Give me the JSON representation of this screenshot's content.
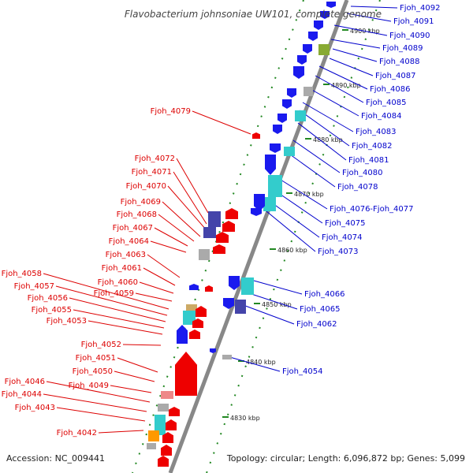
{
  "title": "Flavobacterium johnsoniae UW101, complete genome",
  "footer": {
    "accession": "Accession: NC_009441",
    "topology": "Topology: circular; Length: 6,096,872 bp; Genes: 5,099"
  },
  "colors": {
    "backbone": "#888888",
    "tick": "#228822",
    "forward_label": "#0000cc",
    "reverse_label": "#dd0000",
    "forward_gene": "#1a1aee",
    "reverse_gene": "#ee0000",
    "cyan": "#33cccc",
    "navy": "#4444aa",
    "olive": "#88aa33",
    "gray": "#aaaaaa",
    "orange": "#ff9900",
    "tan": "#ccaa66",
    "pink": "#ee8888"
  },
  "scale_labels": [
    "4900 kbp",
    "4890 kbp",
    "4880 kbp",
    "4870 kbp",
    "4860 kbp",
    "4850 kbp",
    "4840 kbp",
    "4830 kbp"
  ],
  "forward_labels": [
    "Fjoh_4092",
    "Fjoh_4091",
    "Fjoh_4090",
    "Fjoh_4089",
    "Fjoh_4088",
    "Fjoh_4087",
    "Fjoh_4086",
    "Fjoh_4085",
    "Fjoh_4084",
    "Fjoh_4083",
    "Fjoh_4082",
    "Fjoh_4081",
    "Fjoh_4080",
    "Fjoh_4078",
    "Fjoh_4076-Fjoh_4077",
    "Fjoh_4075",
    "Fjoh_4074",
    "Fjoh_4073",
    "Fjoh_4066",
    "Fjoh_4065",
    "Fjoh_4062",
    "Fjoh_4054"
  ],
  "reverse_labels": [
    "Fjoh_4079",
    "Fjoh_4072",
    "Fjoh_4071",
    "Fjoh_4070",
    "Fjoh_4069",
    "Fjoh_4068",
    "Fjoh_4067",
    "Fjoh_4064",
    "Fjoh_4063",
    "Fjoh_4061",
    "Fjoh_4060",
    "Fjoh_4059",
    "Fjoh_4058",
    "Fjoh_4057",
    "Fjoh_4056",
    "Fjoh_4055",
    "Fjoh_4053",
    "Fjoh_4052",
    "Fjoh_4051",
    "Fjoh_4050",
    "Fjoh_4049",
    "Fjoh_4046",
    "Fjoh_4044",
    "Fjoh_4043",
    "Fjoh_4042"
  ]
}
